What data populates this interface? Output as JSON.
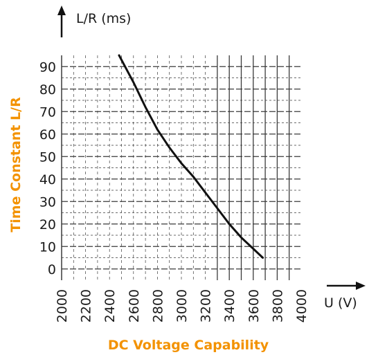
{
  "chart_data": {
    "type": "line",
    "x_axis_title": "DC Voltage Capability",
    "y_axis_title": "Time Constant L/R",
    "x_unit_label": "U (V)",
    "y_unit_label": "L/R (ms)",
    "xlim": [
      2000,
      4000
    ],
    "ylim": [
      -5,
      95
    ],
    "x_ticks": [
      "2000",
      "2200",
      "2400",
      "2600",
      "2800",
      "3000",
      "3200",
      "3400",
      "3600",
      "3800",
      "4000"
    ],
    "y_ticks": [
      "0",
      "10",
      "20",
      "30",
      "40",
      "50",
      "60",
      "70",
      "80",
      "90"
    ],
    "grid": true,
    "series": [
      {
        "x": [
          2480,
          2600,
          2700,
          2800,
          2900,
          3000,
          3100,
          3200,
          3300,
          3400,
          3500,
          3600,
          3680
        ],
        "y": [
          95,
          83,
          72,
          62,
          54,
          47,
          41,
          34,
          27,
          20,
          14,
          9,
          5
        ]
      }
    ],
    "colors": {
      "axis_title": "#f39200",
      "line": "#111111",
      "grid": "#3a3a3a"
    }
  }
}
